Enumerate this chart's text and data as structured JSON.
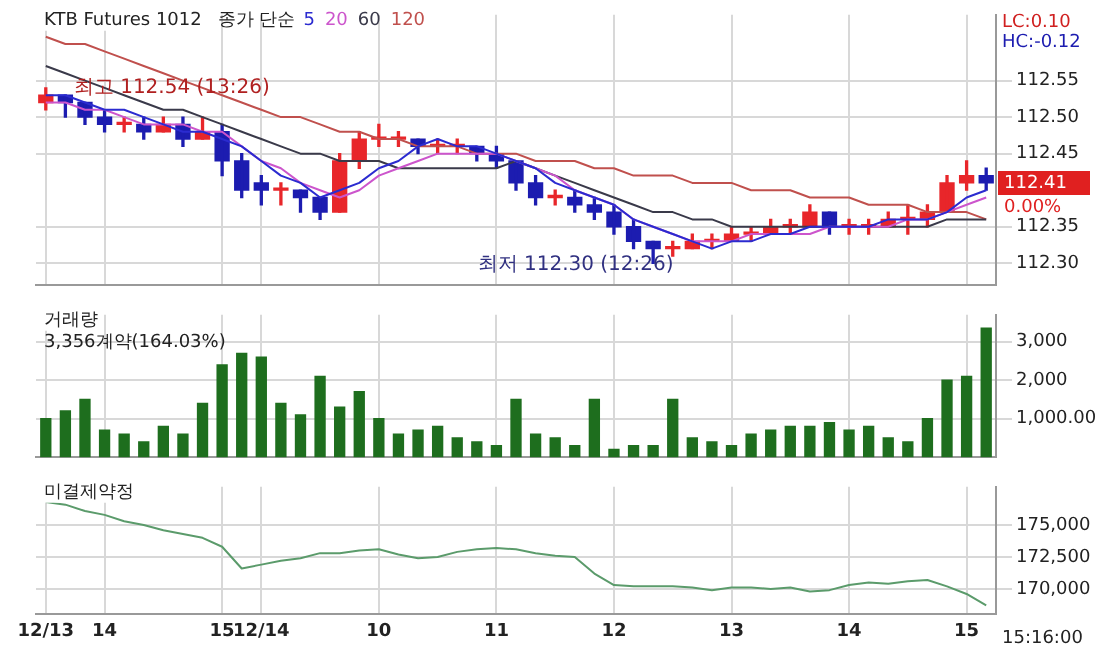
{
  "chart_data": [
    {
      "type": "candlestick",
      "title": "KTB Futures 1012",
      "legend_title": "종가 단순",
      "legend": "top left",
      "grid": true,
      "marker": "none",
      "line_style": "solid",
      "tick_labels": "y",
      "categories": [
        "12/13",
        null,
        null,
        "14",
        null,
        null,
        null,
        null,
        null,
        "15",
        null,
        "12/14",
        null,
        null,
        null,
        null,
        null,
        "10",
        null,
        null,
        null,
        null,
        null,
        "11",
        null,
        null,
        null,
        null,
        null,
        "12",
        null,
        null,
        null,
        null,
        null,
        "13",
        null,
        null,
        null,
        null,
        null,
        "14",
        null,
        null,
        null,
        null,
        null,
        "15",
        null
      ],
      "ohlc": [
        [
          112.52,
          112.54,
          112.51,
          112.53
        ],
        [
          112.53,
          112.53,
          112.5,
          112.52
        ],
        [
          112.52,
          112.52,
          112.49,
          112.5
        ],
        [
          112.5,
          112.51,
          112.48,
          112.49
        ],
        [
          112.49,
          112.5,
          112.48,
          112.49
        ],
        [
          112.49,
          112.5,
          112.47,
          112.48
        ],
        [
          112.48,
          112.5,
          112.48,
          112.49
        ],
        [
          112.49,
          112.5,
          112.46,
          112.47
        ],
        [
          112.47,
          112.5,
          112.47,
          112.48
        ],
        [
          112.48,
          112.49,
          112.42,
          112.44
        ],
        [
          112.44,
          112.45,
          112.39,
          112.4
        ],
        [
          112.41,
          112.42,
          112.38,
          112.4
        ],
        [
          112.4,
          112.41,
          112.38,
          112.4
        ],
        [
          112.4,
          112.4,
          112.37,
          112.39
        ],
        [
          112.39,
          112.39,
          112.36,
          112.37
        ],
        [
          112.37,
          112.45,
          112.37,
          112.44
        ],
        [
          112.44,
          112.48,
          112.43,
          112.47
        ],
        [
          112.47,
          112.49,
          112.46,
          112.47
        ],
        [
          112.47,
          112.48,
          112.46,
          112.47
        ],
        [
          112.47,
          112.47,
          112.45,
          112.46
        ],
        [
          112.46,
          112.47,
          112.45,
          112.46
        ],
        [
          112.46,
          112.47,
          112.45,
          112.46
        ],
        [
          112.46,
          112.46,
          112.44,
          112.45
        ],
        [
          112.45,
          112.46,
          112.43,
          112.44
        ],
        [
          112.44,
          112.44,
          112.4,
          112.41
        ],
        [
          112.41,
          112.42,
          112.38,
          112.39
        ],
        [
          112.39,
          112.4,
          112.38,
          112.39
        ],
        [
          112.39,
          112.4,
          112.37,
          112.38
        ],
        [
          112.38,
          112.39,
          112.36,
          112.37
        ],
        [
          112.37,
          112.38,
          112.34,
          112.35
        ],
        [
          112.35,
          112.36,
          112.32,
          112.33
        ],
        [
          112.33,
          112.33,
          112.3,
          112.32
        ],
        [
          112.32,
          112.33,
          112.31,
          112.32
        ],
        [
          112.32,
          112.34,
          112.32,
          112.33
        ],
        [
          112.33,
          112.34,
          112.32,
          112.33
        ],
        [
          112.33,
          112.35,
          112.33,
          112.34
        ],
        [
          112.34,
          112.35,
          112.33,
          112.34
        ],
        [
          112.34,
          112.36,
          112.34,
          112.35
        ],
        [
          112.35,
          112.36,
          112.34,
          112.35
        ],
        [
          112.35,
          112.38,
          112.35,
          112.37
        ],
        [
          112.37,
          112.37,
          112.34,
          112.35
        ],
        [
          112.35,
          112.36,
          112.34,
          112.35
        ],
        [
          112.35,
          112.36,
          112.34,
          112.35
        ],
        [
          112.35,
          112.37,
          112.35,
          112.36
        ],
        [
          112.36,
          112.38,
          112.34,
          112.36
        ],
        [
          112.36,
          112.38,
          112.35,
          112.37
        ],
        [
          112.37,
          112.42,
          112.37,
          112.41
        ],
        [
          112.41,
          112.44,
          112.4,
          112.42
        ],
        [
          112.42,
          112.43,
          112.4,
          112.41
        ]
      ],
      "colors": [
        "#e8262a",
        "#1c1cb0",
        "#1c1cb0",
        "#1c1cb0",
        "#e8262a",
        "#1c1cb0",
        "#e8262a",
        "#1c1cb0",
        "#e8262a",
        "#1c1cb0",
        "#1c1cb0",
        "#1c1cb0",
        "#e8262a",
        "#1c1cb0",
        "#1c1cb0",
        "#e8262a",
        "#e8262a",
        "#e8262a",
        "#e8262a",
        "#1c1cb0",
        "#e8262a",
        "#e8262a",
        "#1c1cb0",
        "#1c1cb0",
        "#1c1cb0",
        "#1c1cb0",
        "#e8262a",
        "#1c1cb0",
        "#1c1cb0",
        "#1c1cb0",
        "#1c1cb0",
        "#1c1cb0",
        "#e8262a",
        "#e8262a",
        "#e8262a",
        "#e8262a",
        "#e8262a",
        "#e8262a",
        "#e8262a",
        "#e8262a",
        "#1c1cb0",
        "#e8262a",
        "#e8262a",
        "#e8262a",
        "#e8262a",
        "#e8262a",
        "#e8262a",
        "#e8262a",
        "#1c1cb0"
      ],
      "series": [
        {
          "name": "5",
          "type": "line",
          "color": "#2b2bd0",
          "values": [
            112.53,
            112.53,
            112.52,
            112.51,
            112.51,
            112.5,
            112.49,
            112.48,
            112.48,
            112.47,
            112.46,
            112.44,
            112.42,
            112.41,
            112.39,
            112.4,
            112.41,
            112.43,
            112.44,
            112.46,
            112.47,
            112.46,
            112.46,
            112.45,
            112.44,
            112.43,
            112.41,
            112.4,
            112.39,
            112.38,
            112.36,
            112.35,
            112.34,
            112.33,
            112.32,
            112.33,
            112.33,
            112.34,
            112.34,
            112.35,
            112.35,
            112.35,
            112.35,
            112.36,
            112.36,
            112.36,
            112.37,
            112.39,
            112.4
          ]
        },
        {
          "name": "20",
          "type": "line",
          "color": "#cc55cc",
          "values": [
            112.52,
            112.52,
            112.51,
            112.51,
            112.5,
            112.49,
            112.49,
            112.49,
            112.48,
            112.48,
            112.46,
            112.44,
            112.43,
            112.41,
            112.4,
            112.39,
            112.4,
            112.42,
            112.43,
            112.44,
            112.45,
            112.45,
            112.45,
            112.45,
            112.44,
            112.43,
            112.42,
            112.4,
            112.39,
            112.38,
            112.36,
            112.35,
            112.34,
            112.33,
            112.33,
            112.33,
            112.34,
            112.34,
            112.34,
            112.34,
            112.35,
            112.35,
            112.35,
            112.35,
            112.36,
            112.36,
            112.37,
            112.38,
            112.39
          ]
        },
        {
          "name": "60",
          "type": "line",
          "color": "#3a3a4a",
          "values": [
            112.57,
            112.56,
            112.55,
            112.54,
            112.53,
            112.52,
            112.51,
            112.51,
            112.5,
            112.49,
            112.48,
            112.47,
            112.46,
            112.45,
            112.45,
            112.44,
            112.44,
            112.44,
            112.43,
            112.43,
            112.43,
            112.43,
            112.43,
            112.43,
            112.44,
            112.43,
            112.42,
            112.41,
            112.4,
            112.39,
            112.38,
            112.37,
            112.37,
            112.36,
            112.36,
            112.35,
            112.35,
            112.35,
            112.35,
            112.35,
            112.35,
            112.35,
            112.35,
            112.35,
            112.35,
            112.35,
            112.36,
            112.36,
            112.36
          ]
        },
        {
          "name": "120",
          "type": "line",
          "color": "#c0504d",
          "values": [
            112.61,
            112.6,
            112.6,
            112.59,
            112.58,
            112.57,
            112.56,
            112.55,
            112.54,
            112.53,
            112.52,
            112.51,
            112.5,
            112.5,
            112.49,
            112.48,
            112.48,
            112.47,
            112.47,
            112.46,
            112.46,
            112.46,
            112.45,
            112.45,
            112.45,
            112.44,
            112.44,
            112.44,
            112.43,
            112.43,
            112.42,
            112.42,
            112.42,
            112.41,
            112.41,
            112.41,
            112.4,
            112.4,
            112.4,
            112.39,
            112.39,
            112.39,
            112.38,
            112.38,
            112.38,
            112.37,
            112.37,
            112.37,
            112.36
          ]
        }
      ],
      "ylim": [
        112.27,
        112.64
      ],
      "yticks": [
        {
          "value": 112.3,
          "label": "112.30"
        },
        {
          "value": 112.35,
          "label": "112.35"
        },
        {
          "value": 112.45,
          "label": "112.45"
        },
        {
          "value": 112.5,
          "label": "112.50"
        },
        {
          "value": 112.55,
          "label": "112.55"
        }
      ],
      "annotations": [
        {
          "text": "최고 112.54 (13:26)",
          "x": "12/13",
          "y": 112.54
        },
        "최저 112.30 (12:26)",
        "112.41",
        "0.00%",
        "LC:0.10",
        "HC:-0.12"
      ]
    },
    {
      "type": "bar",
      "title": "거래량",
      "grid": true,
      "tick_labels": "y",
      "color": "#1e6e1e",
      "categories": [
        "12/13",
        null,
        null,
        "14",
        null,
        null,
        null,
        null,
        null,
        "15",
        null,
        "12/14",
        null,
        null,
        null,
        null,
        null,
        "10",
        null,
        null,
        null,
        null,
        null,
        "11",
        null,
        null,
        null,
        null,
        null,
        "12",
        null,
        null,
        null,
        null,
        null,
        "13",
        null,
        null,
        null,
        null,
        null,
        "14",
        null,
        null,
        null,
        null,
        null,
        "15",
        null
      ],
      "values": [
        1000,
        1200,
        1500,
        700,
        600,
        400,
        800,
        600,
        1400,
        2400,
        2700,
        2600,
        1400,
        1100,
        2100,
        1300,
        1700,
        1000,
        600,
        700,
        800,
        500,
        400,
        300,
        1500,
        600,
        500,
        300,
        1500,
        200,
        300,
        300,
        1500,
        500,
        400,
        300,
        600,
        700,
        800,
        800,
        900,
        700,
        800,
        500,
        400,
        1000,
        2000,
        2100,
        3356
      ],
      "ylim": [
        0,
        3700
      ],
      "yticks": [
        {
          "value": 1000,
          "label": "1,000.00"
        },
        {
          "value": 2000,
          "label": "2,000"
        },
        {
          "value": 3000,
          "label": "3,000"
        }
      ],
      "annotations": [
        "3,356계약(164.03%)"
      ]
    },
    {
      "type": "line",
      "title": "미결제약정",
      "grid": true,
      "marker": "none",
      "line_style": "solid",
      "color": "#5b9b6b",
      "categories": [
        "12/13",
        null,
        null,
        "14",
        null,
        null,
        null,
        null,
        null,
        "15",
        null,
        "12/14",
        null,
        null,
        null,
        null,
        null,
        "10",
        null,
        null,
        null,
        null,
        null,
        "11",
        null,
        null,
        null,
        null,
        null,
        "12",
        null,
        null,
        null,
        null,
        null,
        "13",
        null,
        null,
        null,
        null,
        null,
        "14",
        null,
        null,
        null,
        null,
        null,
        "15",
        null
      ],
      "values": [
        176800,
        176600,
        176100,
        175800,
        175300,
        175000,
        174600,
        174300,
        174000,
        173300,
        171600,
        171900,
        172200,
        172400,
        172800,
        172800,
        173000,
        173100,
        172700,
        172400,
        172500,
        172900,
        173100,
        173200,
        173100,
        172800,
        172600,
        172500,
        171200,
        170300,
        170200,
        170200,
        170200,
        170100,
        169900,
        170100,
        170100,
        170000,
        170100,
        169800,
        169900,
        170300,
        170500,
        170400,
        170600,
        170700,
        170200,
        169600,
        168700
      ],
      "ylim": [
        168000,
        178000
      ],
      "yticks": [
        {
          "value": 170000,
          "label": "170,000"
        },
        {
          "value": 172500,
          "label": "172,500"
        },
        {
          "value": 175000,
          "label": "175,000"
        }
      ],
      "annotations": [
        "15:16:00"
      ]
    }
  ]
}
